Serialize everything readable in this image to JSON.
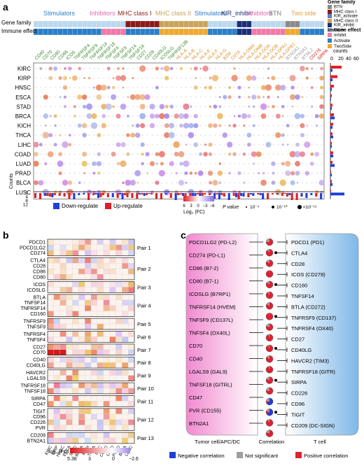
{
  "panel_a": {
    "label": "a",
    "family_headers": [
      {
        "text": "Stimulators",
        "color": "#2a7fc9"
      },
      {
        "text": "Inhibitors",
        "color": "#e06aa8"
      },
      {
        "text": "MHC class I",
        "color": "#8b1a1a"
      },
      {
        "text": "MHC class II",
        "color": "#c9a35a"
      },
      {
        "text": "Stimulators",
        "color": "#2a7fc9"
      },
      {
        "text": "KIR_inhibit",
        "color": "#1a2f7a"
      },
      {
        "text": "Inhibitors",
        "color": "#e06aa8"
      },
      {
        "text": "BTN",
        "color": "#7a7a7a"
      },
      {
        "text": "Two side",
        "color": "#e8a23a"
      }
    ],
    "track_labels": {
      "gene_family": "Gene family",
      "immune_effect": "Immune effect"
    },
    "gene_family_legend": {
      "title": "Gene family",
      "items": [
        {
          "text": "BTN",
          "color": "#8a8a8a"
        },
        {
          "text": "MHC class I",
          "color": "#8b1a1a"
        },
        {
          "text": "KIR_activate",
          "color": "#5b7fc0"
        },
        {
          "text": "MHC class II",
          "color": "#c9a35a"
        },
        {
          "text": "KIR_inhibit",
          "color": "#1a2f7a"
        },
        {
          "text": "Other",
          "color": "#bcd8ee"
        }
      ]
    },
    "immune_effect_legend": {
      "title": "Immune effect",
      "items": [
        {
          "text": "Inhibit",
          "color": "#f07aa8"
        },
        {
          "text": "Activate",
          "color": "#2a7fc9"
        },
        {
          "text": "TwoSide",
          "color": "#f0a830"
        }
      ]
    },
    "cancers": [
      "KIRC",
      "KIRP",
      "HNSC",
      "ESCA",
      "STAD",
      "BRCA",
      "KICH",
      "THCA",
      "LIHC",
      "COAD",
      "LUAD",
      "PRAD",
      "BLCA",
      "LUSC"
    ],
    "gene_labels_green": [
      "CD40",
      "CD70",
      "CD80",
      "CD86",
      "ICOS",
      "TNFRSF4",
      "TNFRSF9",
      "TNFRSF14",
      "TNFRSF18",
      "TNFSF4",
      "TNFSF9",
      "TNFSF14",
      "TNFSF18",
      "CD27",
      "CD28",
      "CD40LG",
      "ICOSLG",
      "TNFRSF13B"
    ],
    "gene_labels_orange": [
      "HLA-A",
      "HLA-B",
      "HLA-C",
      "HLA-E",
      "HLA-F",
      "HLA-G",
      "B2M",
      "CIITA",
      "HLA-DMA",
      "HLA-DMB",
      "HLA-DOA",
      "HLA-DOB",
      "HLA-DPA1",
      "HLA-DPB1"
    ],
    "gene_labels_gray": [
      "BTN2A1",
      "BTN3A1",
      "BTNL2"
    ],
    "gene_labels_red": [
      "CD276",
      "SIRPA"
    ],
    "counts_axis": {
      "title": "counts",
      "ticks": [
        "0",
        "20",
        "40",
        "60"
      ]
    },
    "bottom_counts_axis": {
      "title": "Counts",
      "ticks": [
        "0",
        "4",
        "8",
        "12"
      ]
    },
    "fc_legend": {
      "title": "Log₂ (FC)",
      "ticks": [
        "6",
        "3",
        "0",
        "−3",
        "−6"
      ]
    },
    "p_legend": {
      "title": "P value",
      "items": [
        "10⁻⁴",
        "10⁻¹⁰",
        "<10⁻¹⁵"
      ]
    },
    "regulation_legend": {
      "down": "Down-regulate",
      "up": "Up-regulate",
      "down_color": "#1f3fd6",
      "up_color": "#e01f26"
    }
  },
  "panel_b": {
    "label": "b",
    "genes": [
      "PDCD1",
      "PDCD1LG2",
      "CD274",
      "CTLA4",
      "CD28",
      "CD86",
      "CD80",
      "ICOS",
      "ICOSLG",
      "BTLA",
      "TNFSF14",
      "TNFRSF14",
      "CD160",
      "TNFRSF9",
      "TNFSF9",
      "TNFRSF4",
      "TNFSF4",
      "CD27",
      "CD70",
      "CD40",
      "CD40LG",
      "HAVCR2",
      "LGALS9",
      "TNFRSF18",
      "TNFSF18",
      "SIRPA",
      "CD47",
      "TIGIT",
      "CD96",
      "CD226",
      "PVR",
      "CD209",
      "BTN2A1"
    ],
    "pairs": [
      {
        "label": "Pair 1",
        "n": 3
      },
      {
        "label": "Pair 2",
        "n": 4
      },
      {
        "label": "Pair 3",
        "n": 2
      },
      {
        "label": "Pair 4",
        "n": 4
      },
      {
        "label": "Pair 5",
        "n": 2
      },
      {
        "label": "Pair 6",
        "n": 2
      },
      {
        "label": "Pair 7",
        "n": 2
      },
      {
        "label": "Pair 8",
        "n": 2
      },
      {
        "label": "Pair 9",
        "n": 2
      },
      {
        "label": "Pair 10",
        "n": 2
      },
      {
        "label": "Pair 11",
        "n": 2
      },
      {
        "label": "Pair 12",
        "n": 4
      },
      {
        "label": "Pair 13",
        "n": 2
      }
    ],
    "cancers": [
      "KIRC",
      "KIRP",
      "HNSC",
      "ESCA",
      "STAD",
      "BRCA",
      "KICH",
      "THCA",
      "LIHC",
      "COAD",
      "LUAD",
      "PRAD",
      "BLCA",
      "LUSC"
    ],
    "fc_legend": {
      "title": "log₂ (FC)",
      "ticks": [
        "5.38",
        "3",
        "0",
        "−2.6"
      ]
    }
  },
  "panel_c": {
    "label": "c",
    "left_genes": [
      "PDCD1LG2 (PD-L2)",
      "CD274 (PD-L1)",
      "CD86 (B7-2)",
      "CD80 (B7-1)",
      "ICOSLG (B7RP1)",
      "TNFRSF14 (HVEM)",
      "TNFSF9 (CD137L)",
      "TNFSF4 (OX40L)",
      "CD70",
      "CD40",
      "LGALS9 (GAL9)",
      "TNFSF18 (GITRL)",
      "CD47",
      "PVR (CD155)",
      "BTN2A1"
    ],
    "right_genes": [
      "PDCD1 (PD1)",
      "CTLA4",
      "CD28",
      "ICOS (CD278)",
      "CD160",
      "TNFSF14",
      "BTLA (CD272)",
      "TNFRSF9 (CD137)",
      "TNFRSF4 (OX40)",
      "CD27",
      "CD40LG",
      "HAVCR2 (TIM3)",
      "TNFRSF18 (GITR)",
      "SIRPA",
      "CD226",
      "CD96",
      "TIGIT",
      "CD209 (DC-SIGN)"
    ],
    "left_cell": "Tumor cell/APC/DC",
    "middle": "Correlation",
    "right_cell": "T cell",
    "legend": [
      {
        "text": "Negative correlation",
        "color": "#1f3fd6"
      },
      {
        "text": "Not significant",
        "color": "#9e9e9e"
      },
      {
        "text": "Positive correlation",
        "color": "#e02030"
      }
    ]
  }
}
